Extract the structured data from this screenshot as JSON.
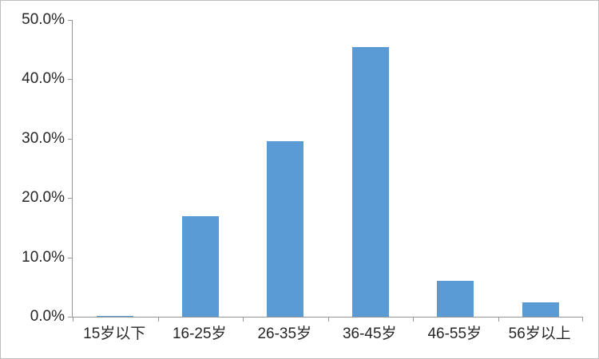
{
  "chart_data": {
    "type": "bar",
    "title": "",
    "xlabel": "",
    "ylabel": "",
    "categories": [
      "15岁以下",
      "16-25岁",
      "26-35岁",
      "36-45岁",
      "46-55岁",
      "56岁以上"
    ],
    "values": [
      0.2,
      16.9,
      29.6,
      45.4,
      6.1,
      2.4
    ],
    "value_unit": "%",
    "ylim": [
      0,
      50
    ],
    "ytick_step": 10,
    "ytick_labels": [
      "0.0%",
      "10.0%",
      "20.0%",
      "30.0%",
      "40.0%",
      "50.0%"
    ],
    "grid": false,
    "legend": "none",
    "bar_color": "#5B9BD5",
    "axis_color": "#959595",
    "text_color": "#262626",
    "chart_border_color": "#BFBFBF",
    "background_color": "#FFFFFF"
  }
}
